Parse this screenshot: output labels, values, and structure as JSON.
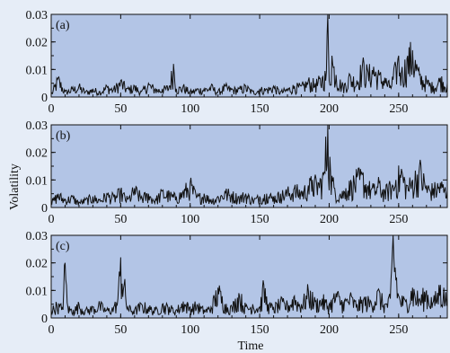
{
  "figure": {
    "ylabel": "Volatility",
    "xlabel": "Time"
  },
  "colors": {
    "plot_bg": "#b3c5e6",
    "page_bg": "#e6edf7",
    "line": "#111111"
  },
  "chart_data": [
    {
      "type": "line",
      "panel_label": "(a)",
      "xlim": [
        0,
        285
      ],
      "ylim": [
        0,
        0.03
      ],
      "x_ticks": [
        "0",
        "50",
        "100",
        "150",
        "200",
        "250"
      ],
      "y_ticks": [
        "0",
        "0.01",
        "0.02",
        "0.03"
      ],
      "grid": false,
      "series": [
        {
          "x": [
            0,
            5,
            10,
            15,
            20,
            25,
            30,
            35,
            40,
            45,
            50,
            55,
            60,
            65,
            70,
            75,
            80,
            85,
            88,
            90,
            95,
            100,
            105,
            110,
            115,
            120,
            125,
            130,
            135,
            140,
            145,
            150,
            155,
            160,
            165,
            170,
            175,
            180,
            185,
            190,
            195,
            198,
            199,
            200,
            202,
            205,
            210,
            215,
            220,
            224,
            228,
            232,
            236,
            240,
            244,
            248,
            250,
            252,
            256,
            260,
            265,
            270,
            275,
            280,
            285
          ],
          "y": [
            0.001,
            0.007,
            0.002,
            0.003,
            0.004,
            0.002,
            0.003,
            0.002,
            0.004,
            0.003,
            0.006,
            0.003,
            0.004,
            0.002,
            0.005,
            0.003,
            0.003,
            0.004,
            0.012,
            0.003,
            0.004,
            0.002,
            0.003,
            0.003,
            0.004,
            0.002,
            0.004,
            0.003,
            0.003,
            0.004,
            0.002,
            0.003,
            0.003,
            0.004,
            0.002,
            0.003,
            0.004,
            0.004,
            0.006,
            0.005,
            0.007,
            0.009,
            0.03,
            0.006,
            0.015,
            0.008,
            0.004,
            0.008,
            0.006,
            0.012,
            0.009,
            0.011,
            0.008,
            0.007,
            0.004,
            0.011,
            0.015,
            0.009,
            0.014,
            0.017,
            0.008,
            0.006,
            0.004,
            0.007,
            0.005
          ]
        }
      ]
    },
    {
      "type": "line",
      "panel_label": "(b)",
      "xlim": [
        0,
        285
      ],
      "ylim": [
        0,
        0.03
      ],
      "x_ticks": [
        "0",
        "50",
        "100",
        "150",
        "200",
        "250"
      ],
      "y_ticks": [
        "0",
        "0.01",
        "0.02",
        "0.03"
      ],
      "grid": false,
      "series": [
        {
          "x": [
            0,
            5,
            10,
            15,
            20,
            25,
            30,
            35,
            40,
            45,
            50,
            55,
            60,
            65,
            70,
            75,
            80,
            85,
            90,
            95,
            100,
            105,
            110,
            115,
            120,
            125,
            130,
            135,
            140,
            145,
            150,
            155,
            160,
            165,
            170,
            175,
            180,
            185,
            188,
            192,
            196,
            199,
            201,
            204,
            208,
            212,
            216,
            220,
            224,
            228,
            232,
            236,
            240,
            244,
            248,
            252,
            256,
            260,
            265,
            270,
            275,
            280,
            285
          ],
          "y": [
            0.002,
            0.005,
            0.003,
            0.004,
            0.002,
            0.003,
            0.004,
            0.003,
            0.005,
            0.004,
            0.006,
            0.003,
            0.007,
            0.004,
            0.005,
            0.003,
            0.006,
            0.005,
            0.004,
            0.006,
            0.009,
            0.004,
            0.005,
            0.003,
            0.004,
            0.006,
            0.005,
            0.004,
            0.005,
            0.003,
            0.004,
            0.005,
            0.004,
            0.005,
            0.006,
            0.007,
            0.006,
            0.008,
            0.01,
            0.009,
            0.012,
            0.03,
            0.013,
            0.007,
            0.005,
            0.007,
            0.009,
            0.011,
            0.012,
            0.008,
            0.007,
            0.009,
            0.006,
            0.008,
            0.01,
            0.014,
            0.008,
            0.01,
            0.015,
            0.008,
            0.007,
            0.009,
            0.006
          ]
        }
      ]
    },
    {
      "type": "line",
      "panel_label": "(c)",
      "xlim": [
        0,
        285
      ],
      "ylim": [
        0,
        0.03
      ],
      "x_ticks": [
        "0",
        "50",
        "100",
        "150",
        "200",
        "250"
      ],
      "y_ticks": [
        "0",
        "0.01",
        "0.02",
        "0.03"
      ],
      "grid": false,
      "series": [
        {
          "x": [
            0,
            4,
            8,
            10,
            12,
            16,
            20,
            25,
            30,
            35,
            40,
            45,
            48,
            50,
            55,
            60,
            65,
            70,
            75,
            80,
            85,
            90,
            95,
            100,
            105,
            110,
            115,
            120,
            125,
            130,
            135,
            140,
            145,
            150,
            153,
            156,
            160,
            165,
            170,
            175,
            180,
            185,
            190,
            195,
            200,
            205,
            210,
            215,
            220,
            225,
            230,
            235,
            240,
            244,
            246,
            250,
            255,
            260,
            265,
            270,
            275,
            280,
            285
          ],
          "y": [
            0.003,
            0.005,
            0.004,
            0.02,
            0.004,
            0.003,
            0.005,
            0.003,
            0.004,
            0.005,
            0.003,
            0.004,
            0.007,
            0.022,
            0.004,
            0.003,
            0.005,
            0.004,
            0.003,
            0.005,
            0.004,
            0.003,
            0.006,
            0.004,
            0.005,
            0.003,
            0.004,
            0.011,
            0.005,
            0.004,
            0.009,
            0.004,
            0.005,
            0.004,
            0.012,
            0.005,
            0.004,
            0.006,
            0.005,
            0.008,
            0.005,
            0.01,
            0.006,
            0.007,
            0.005,
            0.009,
            0.006,
            0.008,
            0.005,
            0.007,
            0.006,
            0.01,
            0.005,
            0.007,
            0.03,
            0.008,
            0.006,
            0.011,
            0.007,
            0.01,
            0.006,
            0.012,
            0.007
          ]
        }
      ]
    }
  ]
}
